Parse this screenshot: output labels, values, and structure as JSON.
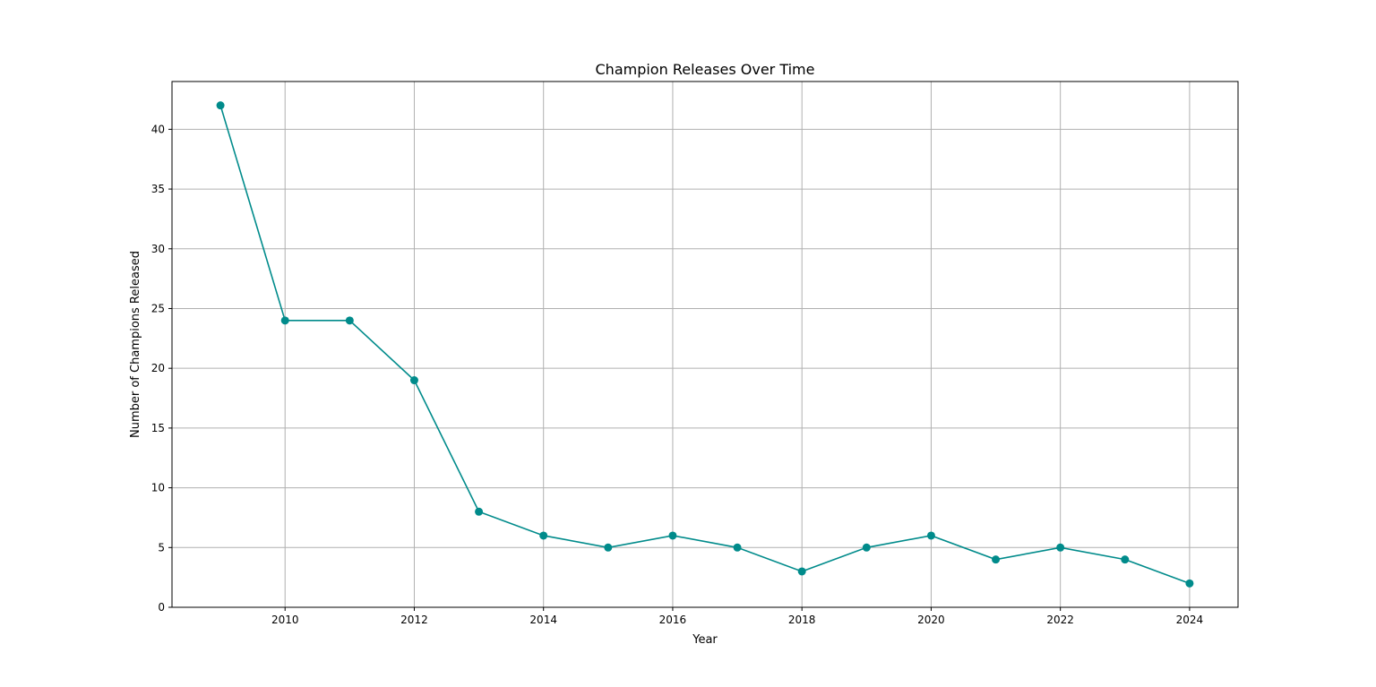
{
  "chart_data": {
    "type": "line",
    "title": "Champion Releases Over Time",
    "xlabel": "Year",
    "ylabel": "Number of Champions Released",
    "x": [
      2009,
      2010,
      2011,
      2012,
      2013,
      2014,
      2015,
      2016,
      2017,
      2018,
      2019,
      2020,
      2021,
      2022,
      2023,
      2024
    ],
    "series": [
      {
        "values": [
          42,
          24,
          24,
          19,
          8,
          6,
          5,
          6,
          5,
          3,
          5,
          6,
          4,
          5,
          4,
          2
        ],
        "color": "#008b8b",
        "marker": "circle"
      }
    ],
    "xlim": [
      2008.25,
      2024.75
    ],
    "ylim": [
      0,
      44
    ],
    "xticks": [
      2010,
      2012,
      2014,
      2016,
      2018,
      2020,
      2022,
      2024
    ],
    "yticks": [
      0,
      5,
      10,
      15,
      20,
      25,
      30,
      35,
      40
    ],
    "grid": true,
    "grid_color": "#b0b0b0"
  }
}
